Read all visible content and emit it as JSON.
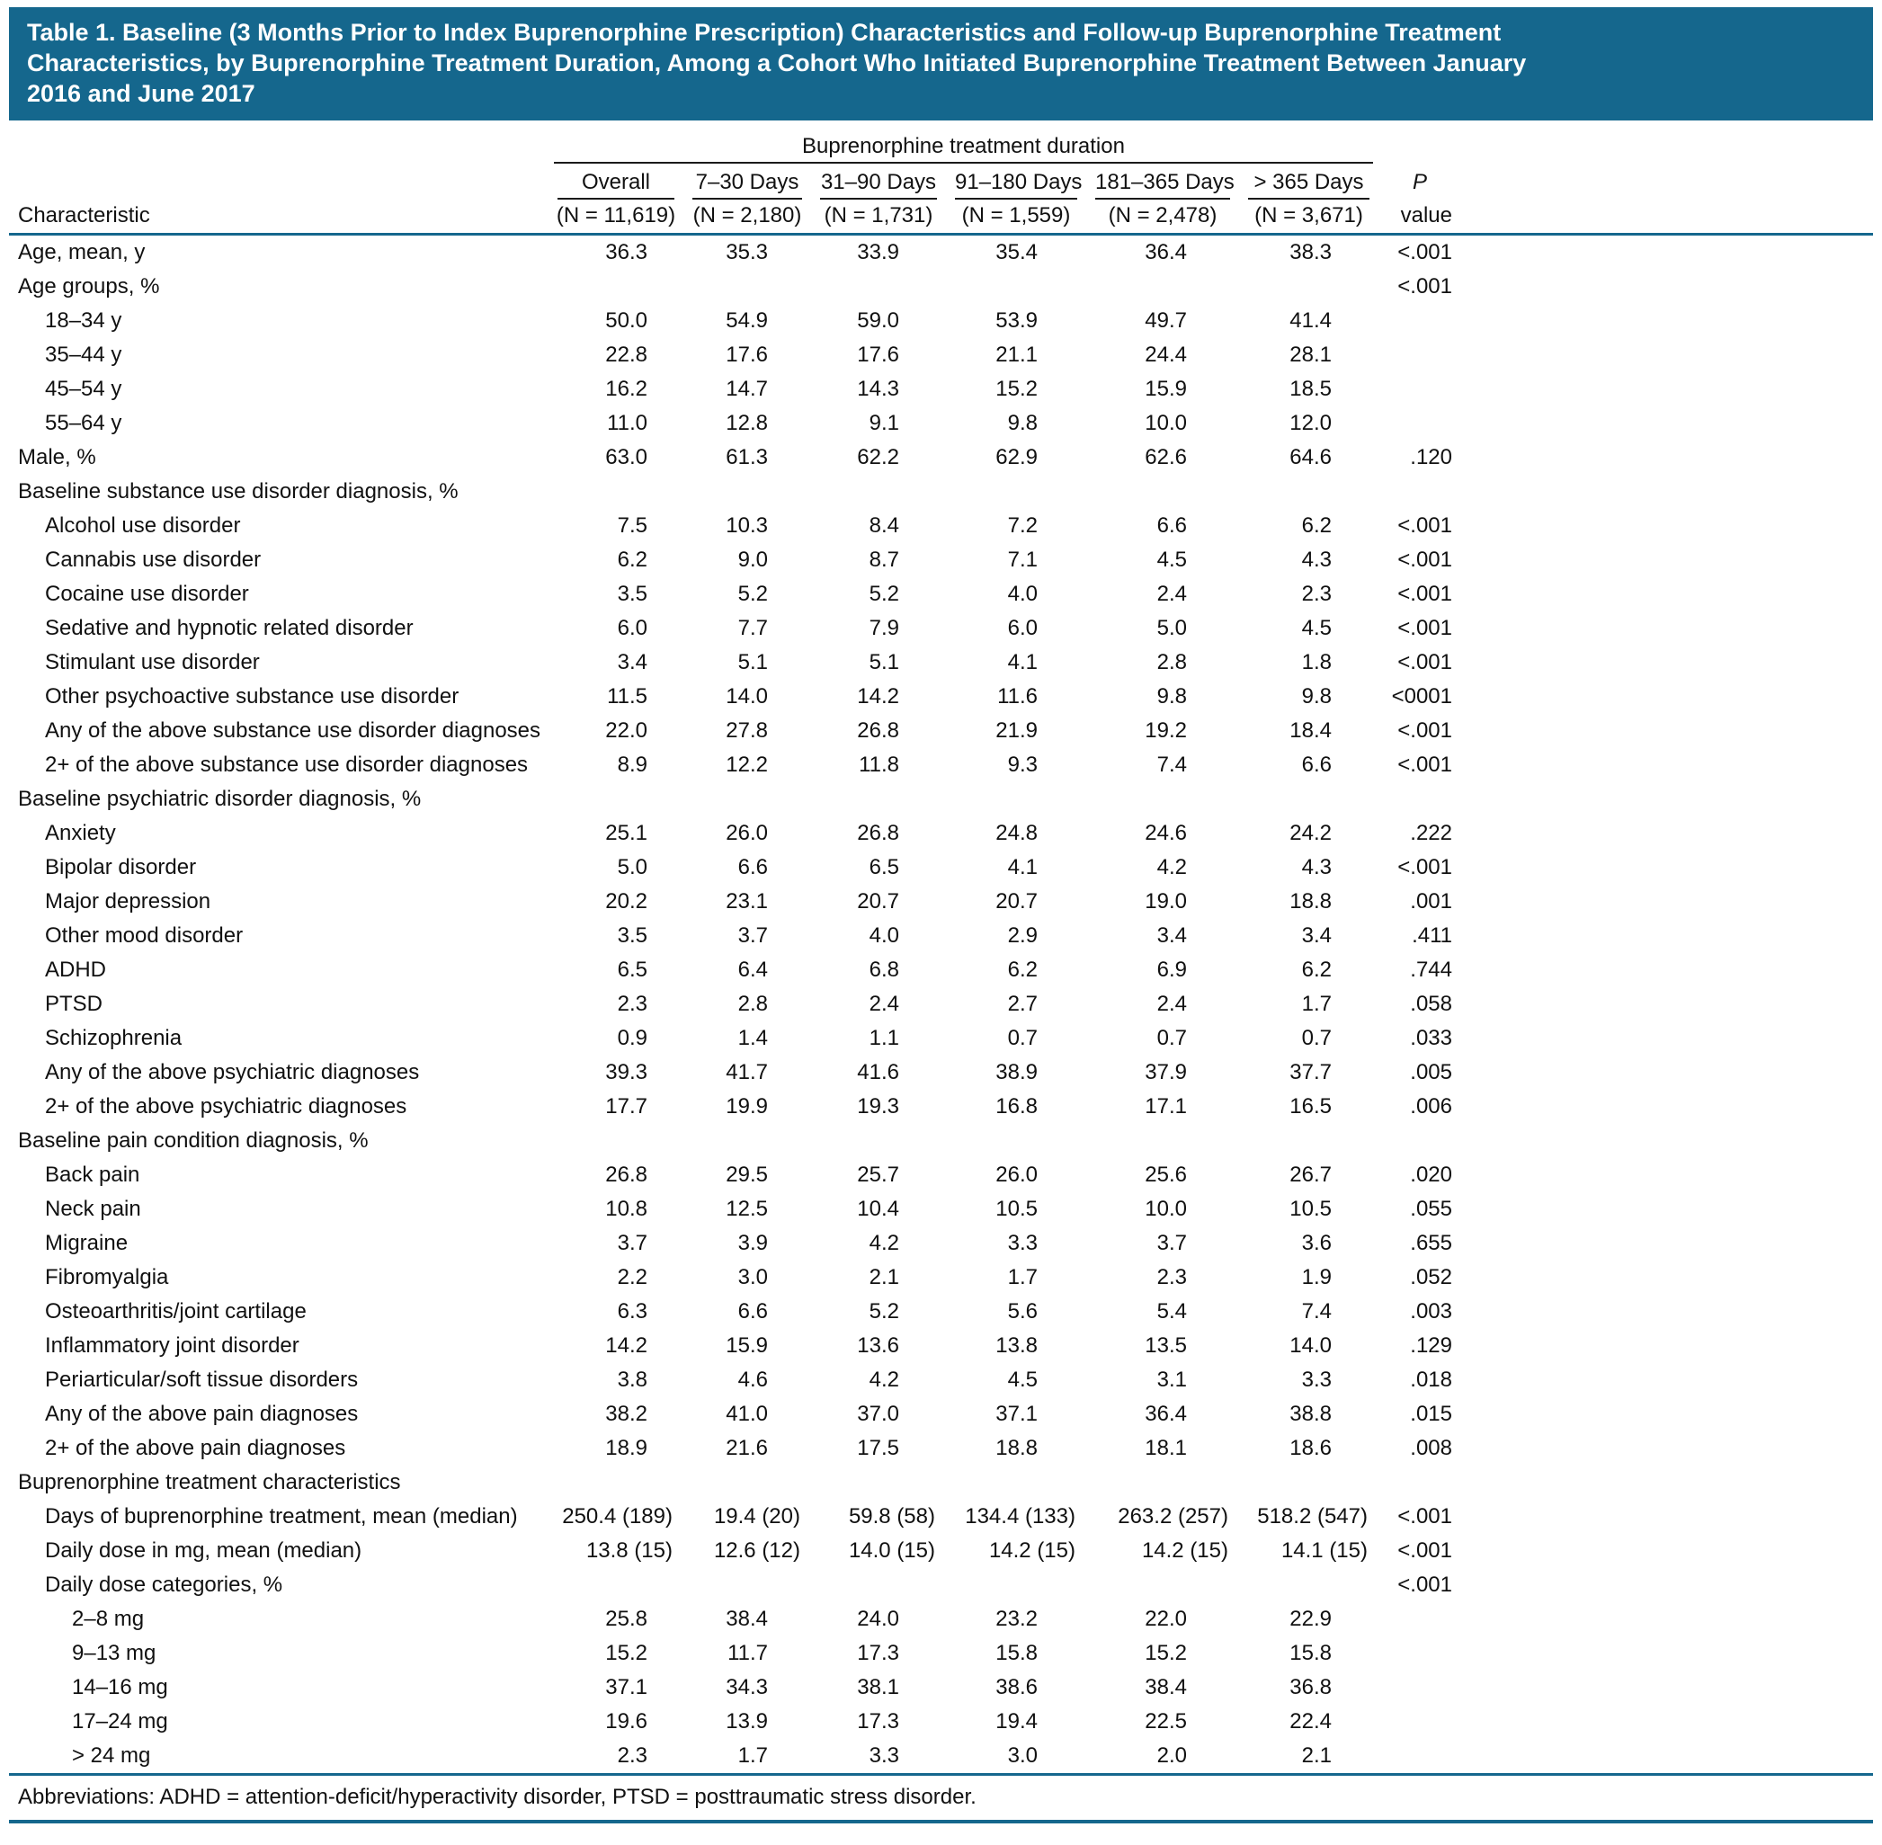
{
  "title": "Table 1. Baseline (3 Months Prior to Index Buprenorphine Prescription) Characteristics and Follow-up Buprenorphine Treatment Characteristics, by Buprenorphine Treatment Duration, Among a Cohort Who Initiated Buprenorphine Treatment Between January 2016 and June 2017",
  "colors": {
    "accent_teal": "#15678d",
    "rule_dark": "#1a1a1a",
    "title_text": "#ffffff"
  },
  "table": {
    "spanner": "Buprenorphine treatment duration",
    "row_header": "Characteristic",
    "p_column": {
      "line1": "P",
      "line2": "value"
    },
    "columns": [
      {
        "label": "Overall",
        "n": "(N = 11,619)"
      },
      {
        "label": "7–30 Days",
        "n": "(N = 2,180)"
      },
      {
        "label": "31–90 Days",
        "n": "(N = 1,731)"
      },
      {
        "label": "91–180 Days",
        "n": "(N = 1,559)"
      },
      {
        "label": "181–365 Days",
        "n": "(N = 2,478)"
      },
      {
        "label": "> 365 Days",
        "n": "(N = 3,671)"
      }
    ],
    "rows": [
      {
        "label": "Age, mean, y",
        "indent": 0,
        "values": [
          "36.3",
          "35.3",
          "33.9",
          "35.4",
          "36.4",
          "38.3"
        ],
        "p": "<.001"
      },
      {
        "label": "Age groups, %",
        "indent": 0,
        "values": [
          "",
          "",
          "",
          "",
          "",
          ""
        ],
        "p": "<.001"
      },
      {
        "label": "18–34 y",
        "indent": 1,
        "values": [
          "50.0",
          "54.9",
          "59.0",
          "53.9",
          "49.7",
          "41.4"
        ],
        "p": ""
      },
      {
        "label": "35–44 y",
        "indent": 1,
        "values": [
          "22.8",
          "17.6",
          "17.6",
          "21.1",
          "24.4",
          "28.1"
        ],
        "p": ""
      },
      {
        "label": "45–54 y",
        "indent": 1,
        "values": [
          "16.2",
          "14.7",
          "14.3",
          "15.2",
          "15.9",
          "18.5"
        ],
        "p": ""
      },
      {
        "label": "55–64 y",
        "indent": 1,
        "values": [
          "11.0",
          "12.8",
          "9.1",
          "9.8",
          "10.0",
          "12.0"
        ],
        "p": ""
      },
      {
        "label": "Male, %",
        "indent": 0,
        "values": [
          "63.0",
          "61.3",
          "62.2",
          "62.9",
          "62.6",
          "64.6"
        ],
        "p": ".120"
      },
      {
        "label": "Baseline substance use disorder diagnosis, %",
        "indent": 0,
        "values": [
          "",
          "",
          "",
          "",
          "",
          ""
        ],
        "p": ""
      },
      {
        "label": "Alcohol use disorder",
        "indent": 1,
        "values": [
          "7.5",
          "10.3",
          "8.4",
          "7.2",
          "6.6",
          "6.2"
        ],
        "p": "<.001"
      },
      {
        "label": "Cannabis use disorder",
        "indent": 1,
        "values": [
          "6.2",
          "9.0",
          "8.7",
          "7.1",
          "4.5",
          "4.3"
        ],
        "p": "<.001"
      },
      {
        "label": "Cocaine use disorder",
        "indent": 1,
        "values": [
          "3.5",
          "5.2",
          "5.2",
          "4.0",
          "2.4",
          "2.3"
        ],
        "p": "<.001"
      },
      {
        "label": "Sedative and hypnotic related disorder",
        "indent": 1,
        "values": [
          "6.0",
          "7.7",
          "7.9",
          "6.0",
          "5.0",
          "4.5"
        ],
        "p": "<.001"
      },
      {
        "label": "Stimulant use disorder",
        "indent": 1,
        "values": [
          "3.4",
          "5.1",
          "5.1",
          "4.1",
          "2.8",
          "1.8"
        ],
        "p": "<.001"
      },
      {
        "label": "Other psychoactive substance use disorder",
        "indent": 1,
        "values": [
          "11.5",
          "14.0",
          "14.2",
          "11.6",
          "9.8",
          "9.8"
        ],
        "p": "<0001"
      },
      {
        "label": "Any of the above substance use disorder diagnoses",
        "indent": 1,
        "values": [
          "22.0",
          "27.8",
          "26.8",
          "21.9",
          "19.2",
          "18.4"
        ],
        "p": "<.001"
      },
      {
        "label": "2+ of the above substance use disorder diagnoses",
        "indent": 1,
        "values": [
          "8.9",
          "12.2",
          "11.8",
          "9.3",
          "7.4",
          "6.6"
        ],
        "p": "<.001"
      },
      {
        "label": "Baseline psychiatric disorder diagnosis, %",
        "indent": 0,
        "values": [
          "",
          "",
          "",
          "",
          "",
          ""
        ],
        "p": ""
      },
      {
        "label": "Anxiety",
        "indent": 1,
        "values": [
          "25.1",
          "26.0",
          "26.8",
          "24.8",
          "24.6",
          "24.2"
        ],
        "p": ".222"
      },
      {
        "label": "Bipolar disorder",
        "indent": 1,
        "values": [
          "5.0",
          "6.6",
          "6.5",
          "4.1",
          "4.2",
          "4.3"
        ],
        "p": "<.001"
      },
      {
        "label": "Major depression",
        "indent": 1,
        "values": [
          "20.2",
          "23.1",
          "20.7",
          "20.7",
          "19.0",
          "18.8"
        ],
        "p": ".001"
      },
      {
        "label": "Other mood disorder",
        "indent": 1,
        "values": [
          "3.5",
          "3.7",
          "4.0",
          "2.9",
          "3.4",
          "3.4"
        ],
        "p": ".411"
      },
      {
        "label": "ADHD",
        "indent": 1,
        "values": [
          "6.5",
          "6.4",
          "6.8",
          "6.2",
          "6.9",
          "6.2"
        ],
        "p": ".744"
      },
      {
        "label": "PTSD",
        "indent": 1,
        "values": [
          "2.3",
          "2.8",
          "2.4",
          "2.7",
          "2.4",
          "1.7"
        ],
        "p": ".058"
      },
      {
        "label": "Schizophrenia",
        "indent": 1,
        "values": [
          "0.9",
          "1.4",
          "1.1",
          "0.7",
          "0.7",
          "0.7"
        ],
        "p": ".033"
      },
      {
        "label": "Any of the above psychiatric diagnoses",
        "indent": 1,
        "values": [
          "39.3",
          "41.7",
          "41.6",
          "38.9",
          "37.9",
          "37.7"
        ],
        "p": ".005"
      },
      {
        "label": "2+ of the above psychiatric diagnoses",
        "indent": 1,
        "values": [
          "17.7",
          "19.9",
          "19.3",
          "16.8",
          "17.1",
          "16.5"
        ],
        "p": ".006"
      },
      {
        "label": "Baseline pain condition diagnosis, %",
        "indent": 0,
        "values": [
          "",
          "",
          "",
          "",
          "",
          ""
        ],
        "p": ""
      },
      {
        "label": "Back pain",
        "indent": 1,
        "values": [
          "26.8",
          "29.5",
          "25.7",
          "26.0",
          "25.6",
          "26.7"
        ],
        "p": ".020"
      },
      {
        "label": "Neck pain",
        "indent": 1,
        "values": [
          "10.8",
          "12.5",
          "10.4",
          "10.5",
          "10.0",
          "10.5"
        ],
        "p": ".055"
      },
      {
        "label": "Migraine",
        "indent": 1,
        "values": [
          "3.7",
          "3.9",
          "4.2",
          "3.3",
          "3.7",
          "3.6"
        ],
        "p": ".655"
      },
      {
        "label": "Fibromyalgia",
        "indent": 1,
        "values": [
          "2.2",
          "3.0",
          "2.1",
          "1.7",
          "2.3",
          "1.9"
        ],
        "p": ".052"
      },
      {
        "label": "Osteoarthritis/joint cartilage",
        "indent": 1,
        "values": [
          "6.3",
          "6.6",
          "5.2",
          "5.6",
          "5.4",
          "7.4"
        ],
        "p": ".003"
      },
      {
        "label": "Inflammatory joint disorder",
        "indent": 1,
        "values": [
          "14.2",
          "15.9",
          "13.6",
          "13.8",
          "13.5",
          "14.0"
        ],
        "p": ".129"
      },
      {
        "label": "Periarticular/soft tissue disorders",
        "indent": 1,
        "values": [
          "3.8",
          "4.6",
          "4.2",
          "4.5",
          "3.1",
          "3.3"
        ],
        "p": ".018"
      },
      {
        "label": "Any of the above pain diagnoses",
        "indent": 1,
        "values": [
          "38.2",
          "41.0",
          "37.0",
          "37.1",
          "36.4",
          "38.8"
        ],
        "p": ".015"
      },
      {
        "label": "2+ of the above pain diagnoses",
        "indent": 1,
        "values": [
          "18.9",
          "21.6",
          "17.5",
          "18.8",
          "18.1",
          "18.6"
        ],
        "p": ".008"
      },
      {
        "label": "Buprenorphine treatment characteristics",
        "indent": 0,
        "values": [
          "",
          "",
          "",
          "",
          "",
          ""
        ],
        "p": ""
      },
      {
        "label": "Days of buprenorphine treatment, mean (median)",
        "indent": 1,
        "values": [
          "250.4 (189)",
          "19.4 (20)",
          "59.8 (58)",
          "134.4 (133)",
          "263.2 (257)",
          "518.2 (547)"
        ],
        "p": "<.001"
      },
      {
        "label": "Daily dose in mg, mean (median)",
        "indent": 1,
        "values": [
          "13.8 (15)",
          "12.6 (12)",
          "14.0 (15)",
          "14.2 (15)",
          "14.2 (15)",
          "14.1 (15)"
        ],
        "p": "<.001"
      },
      {
        "label": "Daily dose categories, %",
        "indent": 1,
        "values": [
          "",
          "",
          "",
          "",
          "",
          ""
        ],
        "p": "<.001"
      },
      {
        "label": "2–8 mg",
        "indent": 2,
        "values": [
          "25.8",
          "38.4",
          "24.0",
          "23.2",
          "22.0",
          "22.9"
        ],
        "p": ""
      },
      {
        "label": "9–13 mg",
        "indent": 2,
        "values": [
          "15.2",
          "11.7",
          "17.3",
          "15.8",
          "15.2",
          "15.8"
        ],
        "p": ""
      },
      {
        "label": "14–16 mg",
        "indent": 2,
        "values": [
          "37.1",
          "34.3",
          "38.1",
          "38.6",
          "38.4",
          "36.8"
        ],
        "p": ""
      },
      {
        "label": "17–24 mg",
        "indent": 2,
        "values": [
          "19.6",
          "13.9",
          "17.3",
          "19.4",
          "22.5",
          "22.4"
        ],
        "p": ""
      },
      {
        "label": "> 24 mg",
        "indent": 2,
        "values": [
          "2.3",
          "1.7",
          "3.3",
          "3.0",
          "2.0",
          "2.1"
        ],
        "p": ""
      }
    ]
  },
  "footnote": "Abbreviations: ADHD = attention-deficit/hyperactivity disorder, PTSD = posttraumatic stress disorder."
}
